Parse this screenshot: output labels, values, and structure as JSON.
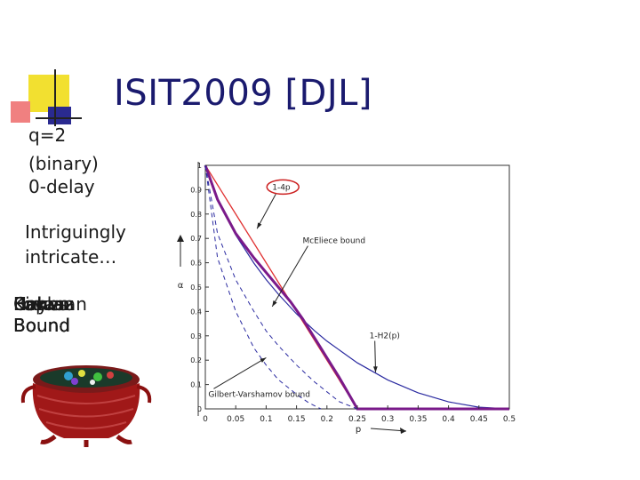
{
  "slide": {
    "title": "ISIT2009 [DJL]",
    "side_lines": [
      "q=2",
      "(binary)",
      "0-delay"
    ],
    "description_lines": [
      "Intriguingly",
      "intricate…"
    ],
    "overlapping_labels": [
      [
        "Hayes",
        "Bound"
      ],
      [
        "Brown",
        "Bound"
      ],
      [
        "Kaplan",
        "Bound"
      ],
      [
        "Lovasz",
        "Bound"
      ],
      [
        "Cohen",
        "Bound"
      ],
      [
        "Kirkman",
        "Bound"
      ]
    ]
  },
  "chart_data": {
    "type": "line",
    "xlabel": "p",
    "ylabel": "α",
    "xlim": [
      0,
      0.5
    ],
    "ylim": [
      0,
      1
    ],
    "x_ticks": [
      "0",
      "0.05",
      "0.1",
      "0.15",
      "0.2",
      "0.25",
      "0.3",
      "0.35",
      "0.4",
      "0.45",
      "0.5"
    ],
    "y_ticks": [
      "0",
      "0.1",
      "0.2",
      "0.3",
      "0.4",
      "0.5",
      "0.6",
      "0.7",
      "0.8",
      "0.9",
      "1"
    ],
    "colors": {
      "red": "#e03030",
      "blue": "#2a2aa0",
      "purple": "#7a1a8a"
    },
    "series": [
      {
        "name": "1-4p",
        "style": "red-solid",
        "x": [
          0,
          0.25
        ],
        "y": [
          1,
          0
        ]
      },
      {
        "name": "1-H2(p)",
        "style": "blue-solid",
        "x": [
          0,
          0.02,
          0.05,
          0.08,
          0.1,
          0.12,
          0.15,
          0.18,
          0.2,
          0.25,
          0.3,
          0.35,
          0.4,
          0.45,
          0.5
        ],
        "y": [
          1,
          0.859,
          0.714,
          0.598,
          0.531,
          0.471,
          0.39,
          0.32,
          0.278,
          0.189,
          0.119,
          0.066,
          0.029,
          0.007,
          0
        ]
      },
      {
        "name": "McEliece bound",
        "style": "purple-bold",
        "x": [
          0,
          0.02,
          0.05,
          0.08,
          0.1,
          0.12,
          0.14,
          0.16,
          0.18,
          0.2,
          0.22,
          0.25,
          0.5
        ],
        "y": [
          1,
          0.86,
          0.72,
          0.62,
          0.56,
          0.5,
          0.44,
          0.37,
          0.29,
          0.21,
          0.13,
          0,
          0
        ]
      },
      {
        "name": "Gilbert-Varshamov bound",
        "style": "blue-dashed",
        "x": [
          0,
          0.02,
          0.05,
          0.08,
          0.1,
          0.12,
          0.15,
          0.18,
          0.2,
          0.22,
          0.25
        ],
        "y": [
          1,
          0.72,
          0.53,
          0.4,
          0.32,
          0.26,
          0.18,
          0.11,
          0.07,
          0.03,
          0
        ]
      },
      {
        "name": "inner-dashed",
        "style": "blue-dashed",
        "x": [
          0,
          0.02,
          0.05,
          0.08,
          0.1,
          0.12,
          0.15,
          0.17,
          0.19
        ],
        "y": [
          1,
          0.62,
          0.4,
          0.25,
          0.18,
          0.12,
          0.06,
          0.025,
          0
        ]
      }
    ],
    "annotations": [
      {
        "text": "1-4p",
        "circled": true,
        "at": [
          0.11,
          0.9
        ],
        "arrow_to": [
          0.085,
          0.74
        ]
      },
      {
        "text": "McEliece bound",
        "at": [
          0.16,
          0.68
        ],
        "arrow_to": [
          0.11,
          0.42
        ]
      },
      {
        "text": "1-H2(p)",
        "at": [
          0.27,
          0.29
        ],
        "arrow_to": [
          0.28,
          0.15
        ]
      },
      {
        "text": "Gilbert-Varshamov bound",
        "at": [
          0.005,
          0.05
        ],
        "arrow_to": [
          0.1,
          0.21
        ]
      }
    ]
  }
}
